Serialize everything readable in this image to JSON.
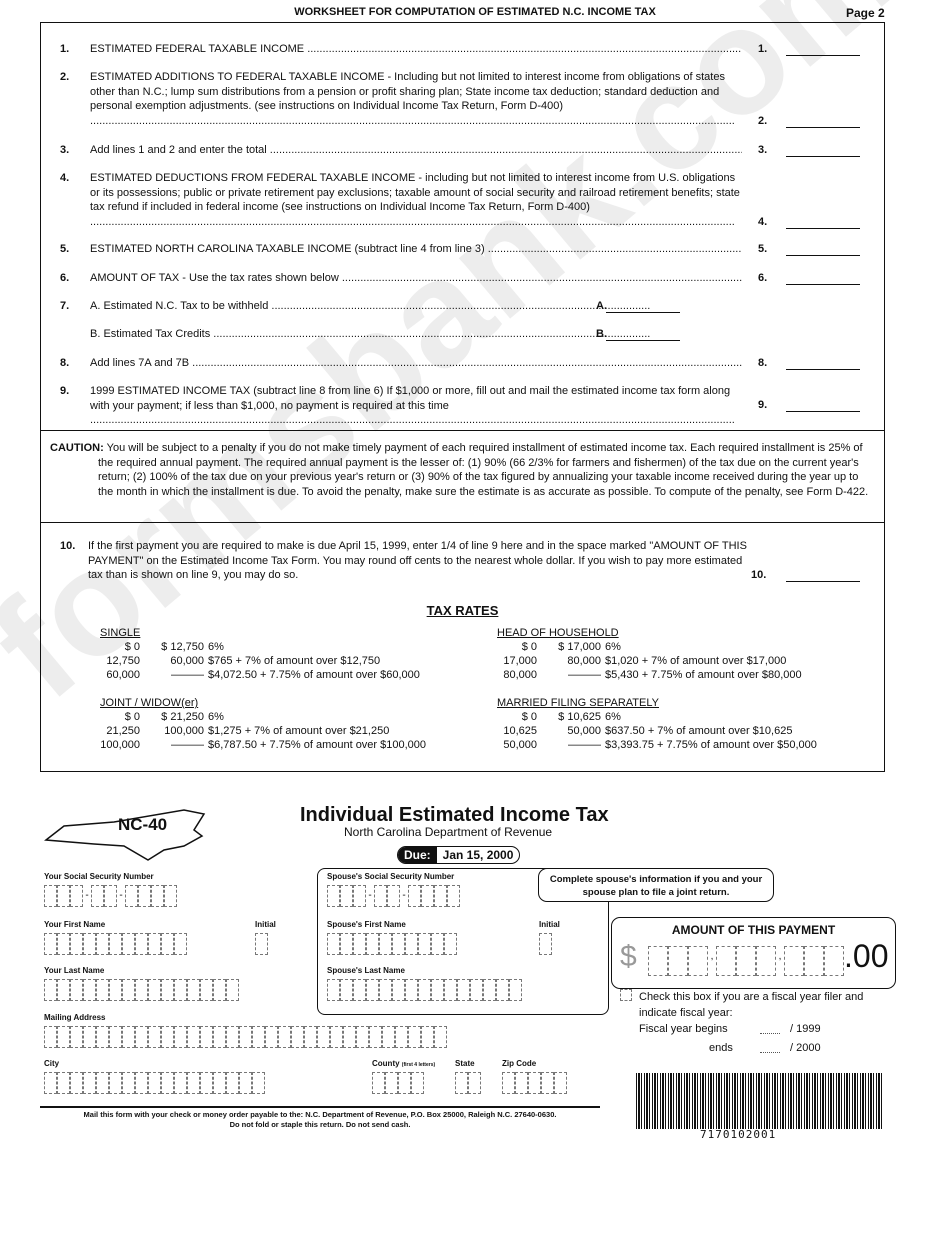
{
  "header": {
    "title": "WORKSHEET FOR COMPUTATION OF ESTIMATED N.C. INCOME TAX",
    "page": "Page 2"
  },
  "lines": [
    {
      "num": "1.",
      "text": "ESTIMATED FEDERAL TAXABLE INCOME",
      "ref": "1."
    },
    {
      "num": "2.",
      "text": "ESTIMATED ADDITIONS TO FEDERAL TAXABLE INCOME - Including but not limited to interest income from obligations of states other than N.C.; lump sum distributions from a pension or profit sharing plan; State income tax deduction; standard deduction and personal exemption adjustments. (see instructions on Individual Income Tax Return, Form D-400)",
      "ref": "2."
    },
    {
      "num": "3.",
      "text": "Add lines 1 and 2 and enter the total",
      "ref": "3."
    },
    {
      "num": "4.",
      "text": "ESTIMATED DEDUCTIONS FROM FEDERAL TAXABLE INCOME - including but not limited to interest income from U.S. obligations or its possessions; public or private retirement pay exclusions; taxable amount of social security and railroad retirement benefits; state tax refund if included in federal income (see instructions on Individual Income Tax Return, Form D-400)",
      "ref": "4."
    },
    {
      "num": "5.",
      "text": "ESTIMATED NORTH CAROLINA TAXABLE INCOME (subtract line 4 from line 3)",
      "ref": "5."
    },
    {
      "num": "6.",
      "text": "AMOUNT OF TAX - Use the tax rates shown below",
      "ref": "6."
    },
    {
      "num": "7.",
      "text": "A. Estimated N.C. Tax to be withheld",
      "ref": "A."
    },
    {
      "num": "",
      "text": "B. Estimated Tax Credits",
      "ref": "B."
    },
    {
      "num": "8.",
      "text": "Add lines 7A and 7B",
      "ref": "8."
    },
    {
      "num": "9.",
      "text": "1999 ESTIMATED INCOME TAX (subtract line 8 from line 6) If $1,000 or more, fill out and mail the estimated income tax form along with your payment; if less than $1,000, no payment is required at this time",
      "ref": "9."
    }
  ],
  "caution": {
    "label": "CAUTION:",
    "text": "You will be subject to a penalty if you do not make timely payment of each required installment of estimated income tax. Each required installment is 25% of the required annual payment. The required annual payment is the lesser of: (1) 90% (66 2/3% for farmers and fishermen) of the tax due on the current year's return; (2) 100% of the tax due on your previous year's return or (3) 90% of the tax figured by annualizing your taxable income received during the year up to the month in which the installment is due. To avoid the penalty, make sure the estimate is as accurate as possible. To compute of the penalty, see Form D-422."
  },
  "line10": {
    "num": "10.",
    "text": "If the first payment you are required to make is due April 15, 1999, enter 1/4 of line 9 here and in the space marked \"AMOUNT OF THIS PAYMENT\" on the Estimated Income Tax Form. You may round off cents to the nearest whole dollar. If you wish to pay more estimated tax than is shown on line 9, you may do so.",
    "ref": "10."
  },
  "tax_rates": {
    "title": "TAX RATES",
    "groups": [
      {
        "name": "SINGLE",
        "rows": [
          [
            "$    0",
            "$  12,750",
            "6%"
          ],
          [
            "12,750",
            "60,000",
            "$765 + 7% of amount over $12,750"
          ],
          [
            "60,000",
            "———",
            "$4,072.50 + 7.75% of amount over $60,000"
          ]
        ]
      },
      {
        "name": "HEAD OF HOUSEHOLD",
        "rows": [
          [
            "$    0",
            "$  17,000",
            "6%"
          ],
          [
            "17,000",
            "80,000",
            "$1,020 + 7% of amount over $17,000"
          ],
          [
            "80,000",
            "———",
            "$5,430 + 7.75% of amount over $80,000"
          ]
        ]
      },
      {
        "name": "JOINT / WIDOW(er)",
        "rows": [
          [
            "$    0",
            "$  21,250",
            "6%"
          ],
          [
            "21,250",
            "100,000",
            "$1,275 + 7% of amount over $21,250"
          ],
          [
            "100,000",
            "———",
            "$6,787.50 + 7.75% of amount over $100,000"
          ]
        ]
      },
      {
        "name": "MARRIED FILING SEPARATELY",
        "rows": [
          [
            "$    0",
            "$  10,625",
            "6%"
          ],
          [
            "10,625",
            "50,000",
            "$637.50 + 7% of amount over $10,625"
          ],
          [
            "50,000",
            "———",
            "$3,393.75 + 7.75% of amount over $50,000"
          ]
        ]
      }
    ]
  },
  "form": {
    "code": "NC-40",
    "title": "Individual Estimated Income Tax",
    "subtitle": "North Carolina Department of Revenue",
    "due_label": "Due:",
    "due_date": "Jan 15, 2000",
    "labels": {
      "ssn": "Your Social Security Number",
      "first": "Your First Name",
      "initial": "Initial",
      "last": "Your Last Name",
      "address": "Mailing Address",
      "city": "City",
      "county": "County",
      "county_note": "(first 4 letters)",
      "state": "State",
      "zip": "Zip Code",
      "sp_ssn": "Spouse's Social Security Number",
      "sp_first": "Spouse's First Name",
      "sp_initial": "Initial",
      "sp_last": "Spouse's Last Name"
    },
    "spouse_note": "Complete spouse's information if you and your spouse plan to file a joint return.",
    "amount": {
      "title": "AMOUNT OF THIS PAYMENT",
      "dollar": "$",
      "cents": ".00"
    },
    "fiscal": {
      "check": "Check this box if you are a fiscal year filer and indicate fiscal year:",
      "begins": "Fiscal year begins",
      "begins_year": "/ 1999",
      "ends": "ends",
      "ends_year": "/ 2000"
    },
    "mail1": "Mail this form with your check or money order payable to the:  N.C. Department of Revenue, P.O. Box 25000, Raleigh N.C. 27640-0630.",
    "mail2": "Do not fold or staple this return. Do not send cash.",
    "barcode": "7170102001"
  },
  "watermark": "formsbank.com"
}
